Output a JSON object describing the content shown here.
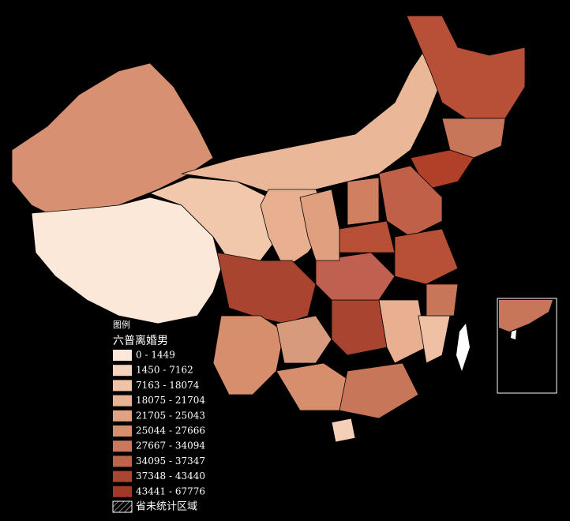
{
  "legend": {
    "title": "图例",
    "subtitle": "六普离婚男",
    "classes": [
      {
        "label": "0 - 1449",
        "color": "#fce8d8"
      },
      {
        "label": "1450 - 7162",
        "color": "#f5d2bc"
      },
      {
        "label": "7163 - 18074",
        "color": "#f0c2a6"
      },
      {
        "label": "18075 - 21704",
        "color": "#e8b294"
      },
      {
        "label": "21705 - 25043",
        "color": "#e0a282"
      },
      {
        "label": "25044 - 27666",
        "color": "#d68e6c"
      },
      {
        "label": "27667 - 34094",
        "color": "#c8785c"
      },
      {
        "label": "34095 - 37347",
        "color": "#bc654a"
      },
      {
        "label": "37348 - 43440",
        "color": "#a84632"
      },
      {
        "label": "43441 - 67776",
        "color": "#9e3a26"
      }
    ],
    "no_data": "省未统计区域"
  }
}
